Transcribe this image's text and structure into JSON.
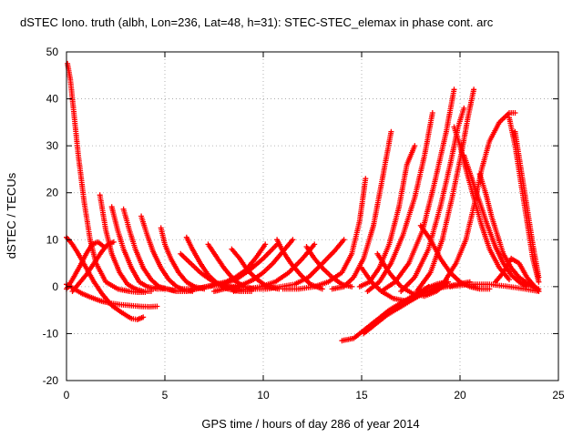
{
  "chart_data": {
    "type": "scatter",
    "title": "dSTEC Iono. truth (albh, Lon=236, Lat=48, h=31): STEC-STEC_elemax in phase cont. arc",
    "xlabel": "GPS time / hours of day 286 of year 2014",
    "ylabel": "dSTEC  / TECUs",
    "xlim": [
      0,
      25
    ],
    "ylim": [
      -20,
      50
    ],
    "x_ticks": [
      0,
      5,
      10,
      15,
      20,
      25
    ],
    "y_ticks": [
      -20,
      -10,
      0,
      10,
      20,
      30,
      40,
      50
    ],
    "grid": true,
    "marker": "+",
    "color": "#ff0000",
    "series": [
      {
        "x": [
          0.05,
          0.2,
          0.4,
          0.6,
          0.9,
          1.2,
          1.5,
          2.0,
          2.6,
          3.2,
          3.6,
          4.0
        ],
        "y": [
          47.5,
          44,
          36,
          28,
          18,
          10,
          5,
          1,
          -0.5,
          -1,
          -1.2,
          -1.2
        ]
      },
      {
        "x": [
          0.0,
          0.3,
          0.6,
          1.0,
          1.4,
          1.8,
          2.3,
          2.8,
          3.3,
          3.6,
          3.9
        ],
        "y": [
          10.5,
          9,
          7,
          4,
          1,
          -1.5,
          -4,
          -5.5,
          -6.8,
          -7.0,
          -6.5
        ]
      },
      {
        "x": [
          0.0,
          0.4,
          0.8,
          1.2,
          1.7,
          2.2,
          2.7,
          3.2,
          3.7,
          4.2,
          4.6
        ],
        "y": [
          0.5,
          -0.5,
          -1.5,
          -2.2,
          -3.0,
          -3.5,
          -3.8,
          -4.0,
          -4.2,
          -4.3,
          -4.2
        ]
      },
      {
        "x": [
          0.0,
          0.3,
          0.7,
          1.0,
          1.3,
          1.6,
          1.9
        ],
        "y": [
          -0.5,
          1.5,
          4.5,
          7,
          9,
          9.5,
          8.5
        ]
      },
      {
        "x": [
          0.3,
          0.6,
          1.0,
          1.4,
          1.8,
          2.1,
          2.4
        ],
        "y": [
          -1,
          0.5,
          2.5,
          5,
          7.5,
          9,
          9.5
        ]
      },
      {
        "x": [
          1.7,
          2.0,
          2.3,
          2.7,
          3.1,
          3.5,
          3.9,
          4.3
        ],
        "y": [
          19.5,
          12,
          7,
          3,
          0.5,
          -0.5,
          -1,
          -1
        ]
      },
      {
        "x": [
          2.3,
          2.6,
          2.9,
          3.3,
          3.7,
          4.1,
          4.6,
          5.0
        ],
        "y": [
          17,
          12,
          8,
          4,
          1,
          0,
          -0.5,
          -0.5
        ]
      },
      {
        "x": [
          2.9,
          3.2,
          3.5,
          3.9,
          4.3,
          4.7,
          5.1,
          5.5
        ],
        "y": [
          16.5,
          12,
          8,
          4,
          1.5,
          0,
          -0.5,
          -0.8
        ]
      },
      {
        "x": [
          3.8,
          4.1,
          4.4,
          4.8,
          5.2,
          5.6,
          6.0,
          6.4
        ],
        "y": [
          15,
          11,
          7.5,
          4,
          1.5,
          0,
          -0.8,
          -1
        ]
      },
      {
        "x": [
          4.8,
          5.0,
          5.3,
          5.7,
          6.1,
          6.5,
          7.0
        ],
        "y": [
          12.5,
          9,
          6,
          3,
          1,
          0,
          -0.5
        ]
      },
      {
        "x": [
          6.1,
          6.4,
          6.8,
          7.2,
          7.7,
          8.2,
          8.8,
          9.4
        ],
        "y": [
          10.5,
          8,
          5,
          2.5,
          0.5,
          -0.5,
          -1,
          -1
        ]
      },
      {
        "x": [
          7.2,
          7.6,
          8.0,
          8.5,
          9.0,
          9.6
        ],
        "y": [
          9,
          6.5,
          4,
          1.5,
          0,
          -0.5
        ]
      },
      {
        "x": [
          8.4,
          8.8,
          9.2,
          9.7,
          10.2,
          10.8
        ],
        "y": [
          8,
          6,
          3.5,
          1.5,
          0,
          -0.5
        ]
      },
      {
        "x": [
          10.7,
          11.0,
          11.4,
          11.9,
          12.4,
          13.0
        ],
        "y": [
          10,
          7.5,
          5,
          2.5,
          0.5,
          -0.5
        ]
      },
      {
        "x": [
          12.2,
          12.6,
          13.0,
          13.5,
          14.0,
          14.5
        ],
        "y": [
          8.5,
          6,
          4,
          2,
          0.5,
          0
        ]
      },
      {
        "x": [
          5.8,
          6.3,
          6.8,
          7.3,
          7.8,
          8.3,
          8.8
        ],
        "y": [
          7,
          5,
          3,
          1.5,
          0.5,
          0,
          -0.5
        ]
      },
      {
        "x": [
          4.6,
          5.1,
          5.6,
          6.1,
          6.6,
          7.1,
          7.6,
          8.1,
          8.6,
          9.1,
          9.6,
          10.1
        ],
        "y": [
          0,
          -0.5,
          -1,
          -1,
          -0.5,
          0,
          0.5,
          1,
          2,
          3.5,
          6,
          9
        ]
      },
      {
        "x": [
          5.8,
          6.5,
          7.2,
          7.9,
          8.6,
          9.3,
          10.0,
          10.7
        ],
        "y": [
          -0.5,
          -0.5,
          0,
          0.5,
          1.5,
          3.5,
          6,
          9
        ]
      },
      {
        "x": [
          7.5,
          8.0,
          8.5,
          9.0,
          9.5,
          10.0,
          10.5,
          11.0,
          11.5
        ],
        "y": [
          -1,
          -0.5,
          0,
          0.5,
          1.5,
          3,
          5,
          7.5,
          10
        ]
      },
      {
        "x": [
          8.5,
          9.2,
          9.9,
          10.6,
          11.3,
          12.0,
          12.6
        ],
        "y": [
          -1,
          -0.5,
          0,
          1,
          3,
          6,
          9
        ]
      },
      {
        "x": [
          9.5,
          10.2,
          10.9,
          11.6,
          12.3,
          12.9,
          13.6,
          14.1
        ],
        "y": [
          -0.5,
          -0.5,
          0,
          0.5,
          2,
          4.5,
          7.5,
          10
        ]
      },
      {
        "x": [
          11.0,
          11.8,
          12.6,
          13.3,
          14.0,
          14.5,
          14.9,
          15.2
        ],
        "y": [
          -0.5,
          -0.5,
          0,
          1,
          3,
          7,
          14,
          23
        ]
      },
      {
        "x": [
          13.5,
          14.1,
          14.6,
          15.1,
          15.6,
          16.1,
          16.5
        ],
        "y": [
          -0.5,
          0,
          2,
          6,
          13,
          24,
          33
        ]
      },
      {
        "x": [
          14.9,
          15.4,
          15.9,
          16.4,
          16.9,
          17.3,
          17.7
        ],
        "y": [
          0,
          1,
          4,
          9,
          17,
          26,
          30
        ]
      },
      {
        "x": [
          15.3,
          15.9,
          16.5,
          17.1,
          17.7,
          18.2,
          18.6
        ],
        "y": [
          -1,
          1,
          5,
          11,
          19,
          28,
          37
        ]
      },
      {
        "x": [
          16.0,
          16.7,
          17.4,
          18.1,
          18.7,
          19.3,
          19.7
        ],
        "y": [
          -1,
          1,
          5,
          12,
          22,
          33,
          42
        ]
      },
      {
        "x": [
          17.0,
          17.7,
          18.4,
          19.0,
          19.5,
          19.9,
          20.2
        ],
        "y": [
          -1,
          2,
          8,
          17,
          26,
          34,
          38
        ]
      },
      {
        "x": [
          17.8,
          18.5,
          19.1,
          19.6,
          20.1,
          20.4,
          20.7
        ],
        "y": [
          -1,
          3,
          10,
          19,
          29,
          36,
          42
        ]
      },
      {
        "x": [
          18.5,
          19.2,
          19.8,
          20.3,
          20.7,
          21.1,
          21.5,
          22.0,
          22.5,
          22.8
        ],
        "y": [
          -1,
          1,
          5,
          10,
          17,
          25,
          31,
          35,
          37,
          37
        ]
      },
      {
        "x": [
          15.0,
          15.5,
          16.0,
          16.6,
          17.2,
          17.8,
          18.4
        ],
        "y": [
          4,
          1,
          -1,
          -2.5,
          -3,
          -2,
          0
        ]
      },
      {
        "x": [
          15.8,
          16.4,
          17.0,
          17.6,
          18.2,
          18.8,
          19.4
        ],
        "y": [
          7,
          3,
          0,
          -1.5,
          -2,
          -1,
          1
        ]
      },
      {
        "x": [
          14.0,
          14.6,
          15.2,
          15.8,
          16.4,
          17.0,
          17.6,
          18.2,
          18.8,
          19.3
        ],
        "y": [
          -11.5,
          -11,
          -9,
          -7,
          -5,
          -3.5,
          -2,
          -0.5,
          0.5,
          1
        ]
      },
      {
        "x": [
          15.1,
          15.7,
          16.3,
          16.9,
          17.5,
          18.1,
          18.7,
          19.3,
          19.9,
          20.5
        ],
        "y": [
          -10,
          -8,
          -6,
          -4.5,
          -3,
          -1.5,
          -0.5,
          0,
          0.5,
          1
        ]
      },
      {
        "x": [
          18.0,
          18.5,
          19.0,
          19.5,
          20.0,
          20.5,
          21.0,
          21.5
        ],
        "y": [
          13,
          10,
          6,
          3,
          1,
          0,
          -0.5,
          -0.5
        ]
      },
      {
        "x": [
          19.7,
          20.0,
          20.3,
          20.7,
          21.1,
          21.5,
          22.0,
          22.5
        ],
        "y": [
          34,
          30,
          25,
          19,
          13,
          8,
          4,
          1.5
        ]
      },
      {
        "x": [
          20.2,
          20.6,
          21.0,
          21.4,
          21.8,
          22.2,
          22.6,
          23.0,
          23.4
        ],
        "y": [
          28,
          23,
          18,
          13,
          8.5,
          5,
          2.5,
          1,
          0
        ]
      },
      {
        "x": [
          21.0,
          21.3,
          21.6,
          21.9,
          22.2,
          22.6,
          23.0,
          23.5,
          24.0
        ],
        "y": [
          24,
          20,
          15,
          11,
          7,
          4,
          2,
          0.5,
          -0.5
        ]
      },
      {
        "x": [
          22.5,
          22.8,
          23.1,
          23.4,
          23.7,
          24.0
        ],
        "y": [
          36,
          30,
          22,
          14,
          6,
          1
        ]
      },
      {
        "x": [
          22.8,
          23.1,
          23.4,
          23.7,
          24.0
        ],
        "y": [
          33,
          25,
          17,
          9,
          2
        ]
      },
      {
        "x": [
          21.8,
          22.2,
          22.6,
          23.0,
          23.4,
          23.8,
          24.0
        ],
        "y": [
          1,
          3,
          6,
          5,
          2,
          0,
          -1
        ]
      },
      {
        "x": [
          19.5,
          20.5,
          21.5,
          22.5,
          23.3,
          24.0
        ],
        "y": [
          0,
          0.5,
          0.5,
          0,
          -0.5,
          -1
        ]
      }
    ]
  }
}
